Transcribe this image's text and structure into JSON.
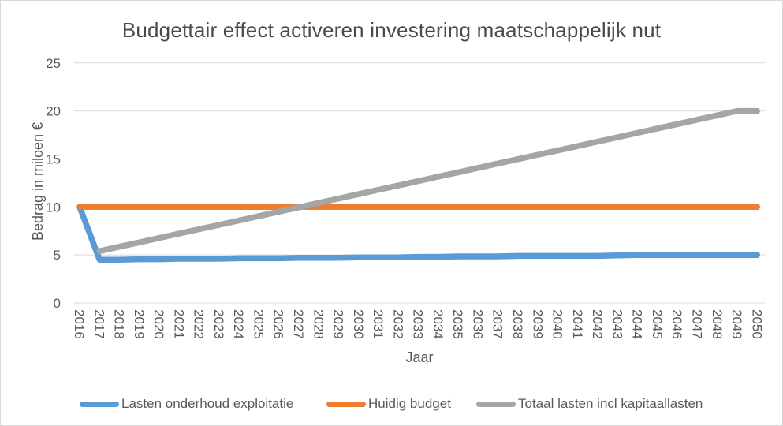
{
  "chart_data": {
    "type": "line",
    "title": "Budgettair effect activeren investering maatschappelijk nut",
    "xlabel": "Jaar",
    "ylabel": "Bedrag in miloen €",
    "ylim": [
      0,
      25
    ],
    "yticks": [
      0,
      5,
      10,
      15,
      20,
      25
    ],
    "grid": true,
    "legend_position": "bottom",
    "gridline_color": "#d9d9d9",
    "axis_text_color": "#595959",
    "title_color": "#4a4a4a",
    "categories": [
      "2016",
      "2017",
      "2018",
      "2019",
      "2020",
      "2021",
      "2022",
      "2023",
      "2024",
      "2025",
      "2026",
      "2027",
      "2028",
      "2029",
      "2030",
      "2031",
      "2032",
      "2033",
      "2034",
      "2035",
      "2036",
      "2037",
      "2038",
      "2039",
      "2040",
      "2041",
      "2042",
      "2043",
      "2044",
      "2045",
      "2046",
      "2047",
      "2048",
      "2049",
      "2050"
    ],
    "series": [
      {
        "name": "Lasten onderhoud exploitatie",
        "color": "#5B9BD5",
        "values": [
          10,
          4.5,
          4.5,
          4.55,
          4.55,
          4.6,
          4.6,
          4.6,
          4.65,
          4.65,
          4.65,
          4.7,
          4.7,
          4.7,
          4.75,
          4.75,
          4.75,
          4.8,
          4.8,
          4.85,
          4.85,
          4.85,
          4.9,
          4.9,
          4.9,
          4.9,
          4.9,
          4.95,
          5,
          5,
          5,
          5,
          5,
          5,
          5
        ]
      },
      {
        "name": "Huidig budget",
        "color": "#ED7D31",
        "values": [
          10,
          10,
          10,
          10,
          10,
          10,
          10,
          10,
          10,
          10,
          10,
          10,
          10,
          10,
          10,
          10,
          10,
          10,
          10,
          10,
          10,
          10,
          10,
          10,
          10,
          10,
          10,
          10,
          10,
          10,
          10,
          10,
          10,
          10,
          10
        ]
      },
      {
        "name": "Totaal lasten incl kapitaallasten",
        "color": "#A5A5A5",
        "values": [
          null,
          5.4,
          5.86,
          6.31,
          6.77,
          7.23,
          7.68,
          8.14,
          8.59,
          9.05,
          9.51,
          9.96,
          10.42,
          10.88,
          11.33,
          11.79,
          12.24,
          12.7,
          13.16,
          13.61,
          14.07,
          14.53,
          14.98,
          15.44,
          15.89,
          16.35,
          16.81,
          17.26,
          17.72,
          18.18,
          18.63,
          19.09,
          19.54,
          20,
          20
        ]
      }
    ]
  }
}
